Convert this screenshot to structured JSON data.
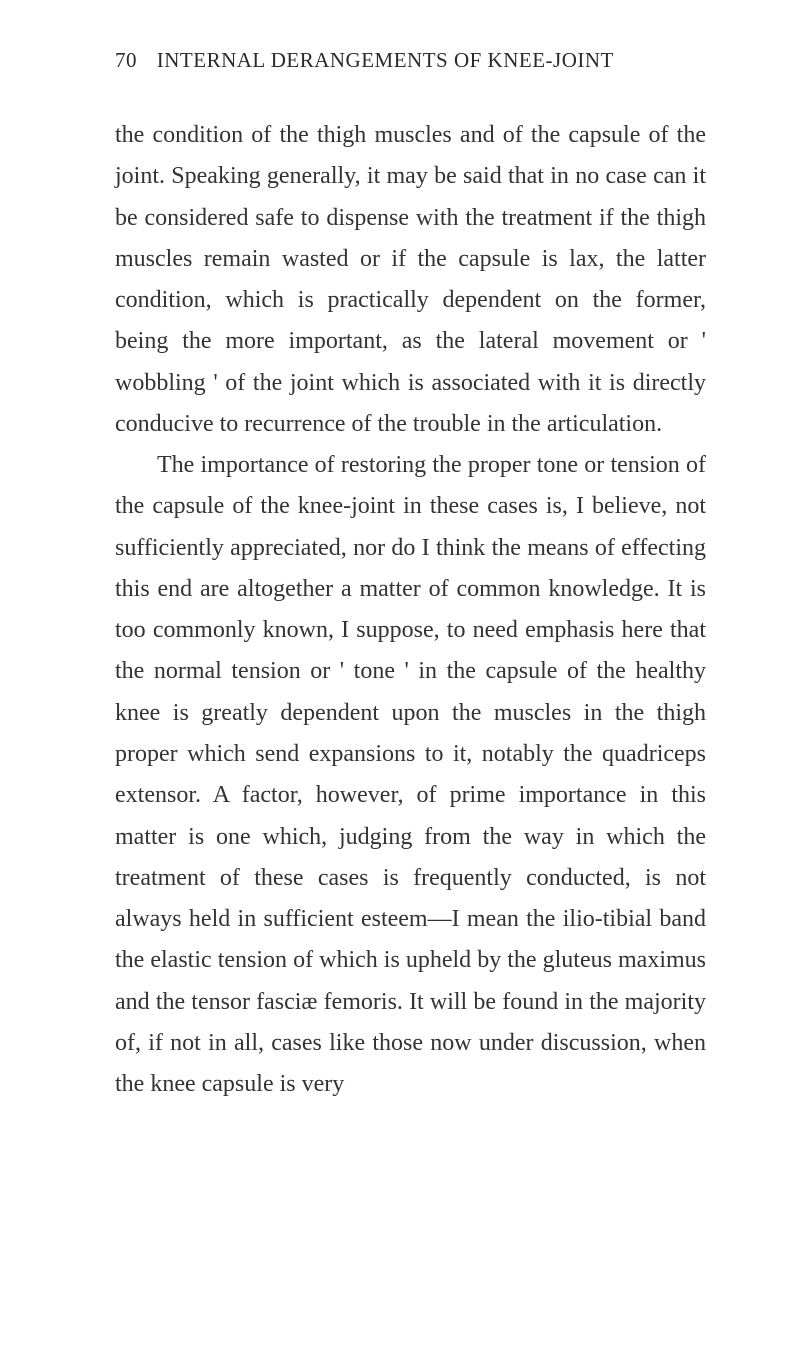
{
  "header": {
    "pageNumber": "70",
    "runningTitle": "INTERNAL DERANGEMENTS OF KNEE-JOINT"
  },
  "body": {
    "paragraph1": "the condition of the thigh muscles and of the capsule of the joint. Speaking generally, it may be said that in no case can it be considered safe to dispense with the treatment if the thigh muscles remain wasted or if the capsule is lax, the latter condition, which is practically dependent on the former, being the more important, as the lateral movement or ' wobbling ' of the joint which is associated with it is directly conducive to recurrence of the trouble in the articulation.",
    "paragraph2": "The importance of restoring the proper tone or tension of the capsule of the knee-joint in these cases is, I believe, not sufficiently appreciated, nor do I think the means of effecting this end are altogether a matter of common knowledge. It is too commonly known, I suppose, to need emphasis here that the normal tension or ' tone ' in the capsule of the healthy knee is greatly dependent upon the muscles in the thigh proper which send expansions to it, notably the quadriceps extensor. A factor, however, of prime importance in this matter is one which, judging from the way in which the treatment of these cases is frequently conducted, is not always held in sufficient esteem—I mean the ilio-tibial band the elastic tension of which is upheld by the gluteus maximus and the tensor fasciæ femoris. It will be found in the majority of, if not in all, cases like those now under discussion, when the knee capsule is very"
  },
  "styles": {
    "backgroundColor": "#ffffff",
    "textColor": "#333333",
    "headerColor": "#2a2a2a",
    "fontFamily": "Georgia, Times New Roman, serif",
    "bodyFontSize": 24,
    "headerFontSize": 21,
    "lineHeight": 1.72
  }
}
